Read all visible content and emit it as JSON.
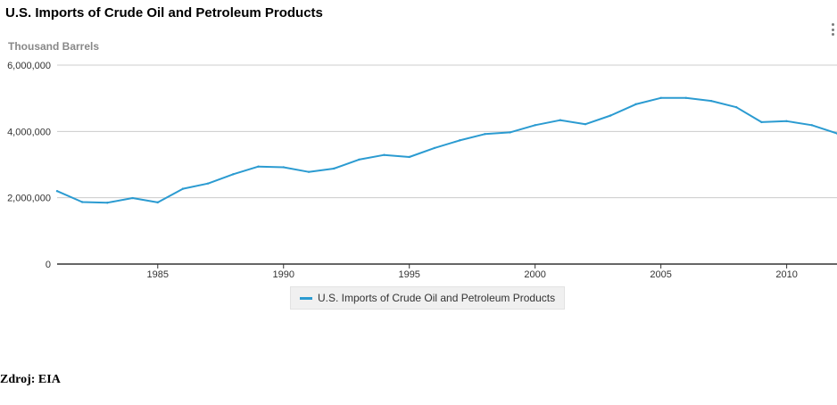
{
  "colors": {
    "series": "#2b9bd1",
    "grid": "#cccccc",
    "axis": "#333333"
  },
  "menu_icon": "vertical-dots-icon",
  "chart_data": {
    "type": "line",
    "title": "U.S. Imports of Crude Oil and Petroleum Products",
    "ylabel": "Thousand Barrels",
    "xlabel": "",
    "ylim": [
      0,
      6000000
    ],
    "xlim": [
      1981,
      2012
    ],
    "y_ticks": [
      0,
      2000000,
      4000000,
      6000000
    ],
    "y_tick_labels": [
      "0",
      "2,000,000",
      "4,000,000",
      "6,000,000"
    ],
    "x_ticks": [
      1985,
      1990,
      1995,
      2000,
      2005,
      2010
    ],
    "x_tick_labels": [
      "1985",
      "1990",
      "1995",
      "2000",
      "2005",
      "2010"
    ],
    "grid": true,
    "legend_position": "bottom",
    "series": [
      {
        "name": "U.S. Imports of Crude Oil and Petroleum Products",
        "x": [
          1981,
          1982,
          1983,
          1984,
          1985,
          1986,
          1987,
          1988,
          1989,
          1990,
          1991,
          1992,
          1993,
          1994,
          1995,
          1996,
          1997,
          1998,
          1999,
          2000,
          2001,
          2002,
          2003,
          2004,
          2005,
          2006,
          2007,
          2008,
          2009,
          2010,
          2011,
          2012
        ],
        "values": [
          2200000,
          1870000,
          1850000,
          1990000,
          1860000,
          2270000,
          2430000,
          2710000,
          2940000,
          2920000,
          2780000,
          2880000,
          3150000,
          3290000,
          3230000,
          3500000,
          3730000,
          3920000,
          3970000,
          4190000,
          4340000,
          4220000,
          4480000,
          4820000,
          5010000,
          5010000,
          4920000,
          4730000,
          4280000,
          4310000,
          4190000,
          3940000
        ]
      }
    ]
  },
  "source": "Zdroj: EIA"
}
